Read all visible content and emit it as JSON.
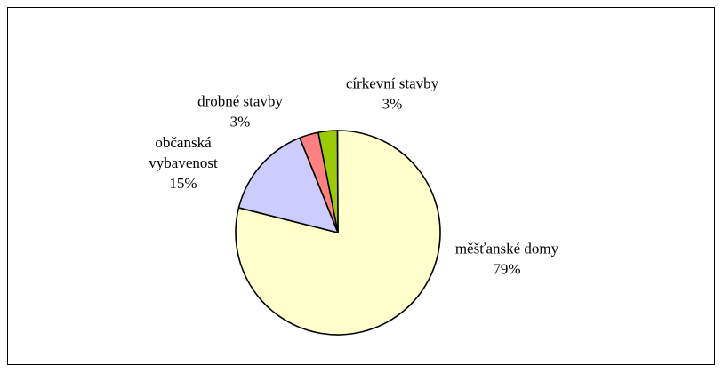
{
  "chart_data": {
    "type": "pie",
    "title": "",
    "legend": "none",
    "slices": [
      {
        "label": [
          "měšťanské domy"
        ],
        "value": 79,
        "percent_label": "79%",
        "color": "#ffffcc"
      },
      {
        "label": [
          "občanská",
          "vybavenost"
        ],
        "value": 15,
        "percent_label": "15%",
        "color": "#ccccff"
      },
      {
        "label": [
          "drobné stavby"
        ],
        "value": 3,
        "percent_label": "3%",
        "color": "#ff8080"
      },
      {
        "label": [
          "církevní stavby"
        ],
        "value": 3,
        "percent_label": "3%",
        "color": "#99cc00"
      }
    ]
  }
}
